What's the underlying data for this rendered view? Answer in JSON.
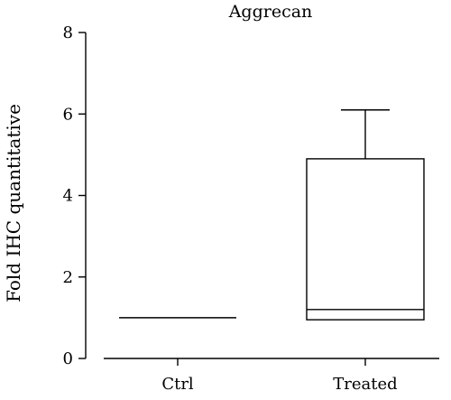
{
  "chart_data": {
    "type": "box",
    "title": "Aggrecan",
    "ylabel": "Fold IHC quantitative",
    "xlabel": "",
    "ylim": [
      0,
      8
    ],
    "yticks": [
      "0",
      "2",
      "4",
      "6",
      "8"
    ],
    "categories": [
      "Ctrl",
      "Treated"
    ],
    "boxes": [
      {
        "category": "Ctrl",
        "min": 1.0,
        "q1": 1.0,
        "median": 1.0,
        "q3": 1.0,
        "max": 1.0
      },
      {
        "category": "Treated",
        "min": 0.95,
        "q1": 0.95,
        "median": 1.2,
        "q3": 4.9,
        "max": 6.1
      }
    ],
    "grid": false,
    "legend": "none"
  }
}
